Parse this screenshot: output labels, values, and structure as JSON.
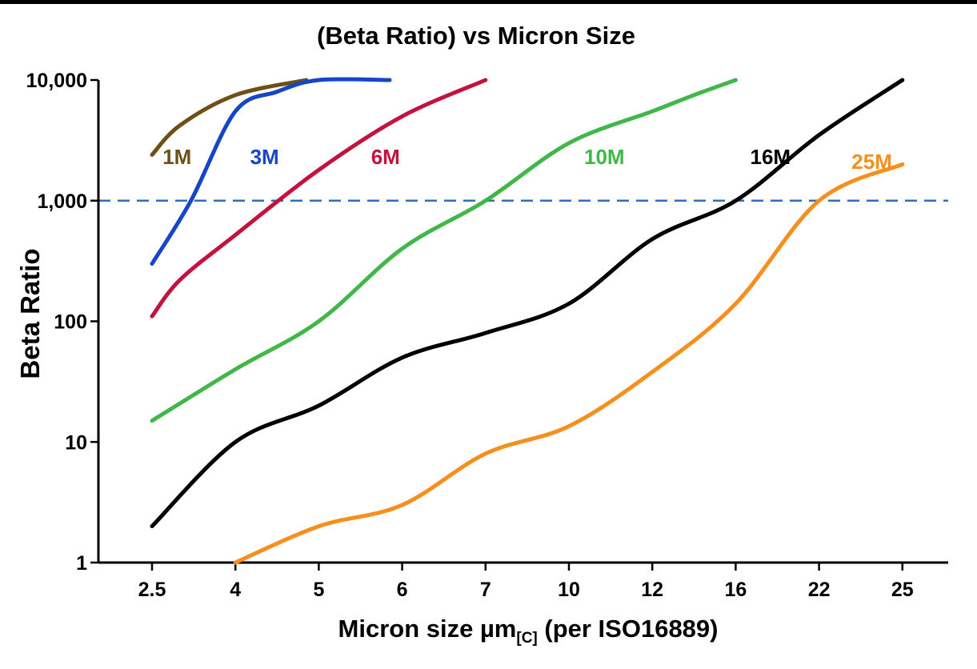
{
  "page": {
    "background": "#ffffff",
    "top_border_color": "#000000"
  },
  "chart_data": {
    "type": "line",
    "title": "(Beta Ratio) vs Micron Size",
    "ylabel": "Beta Ratio",
    "xlabel_main": "Micron size µm",
    "xlabel_sub": "[C]",
    "xlabel_suffix": " (per ISO16889)",
    "y_scale": "log",
    "ylim": [
      1,
      10000
    ],
    "y_ticks": [
      1,
      10,
      100,
      1000,
      10000
    ],
    "y_tick_labels": [
      "1",
      "10",
      "100",
      "1,000",
      "10,000"
    ],
    "x_ticks": [
      2.5,
      4,
      5,
      6,
      7,
      10,
      12,
      16,
      22,
      25
    ],
    "x_tick_labels": [
      "2.5",
      "4",
      "5",
      "6",
      "7",
      "10",
      "12",
      "16",
      "22",
      "25"
    ],
    "grid": false,
    "legend_position": "inline-labels",
    "axis_color": "#000000",
    "reference_line": {
      "y": 1000,
      "style": "dashed",
      "color": "#2e6fb7"
    },
    "series": [
      {
        "name": "1M",
        "color": "#6e4f16",
        "label_pos": [
          2.95,
          2300
        ],
        "points": [
          [
            2.5,
            2400
          ],
          [
            3,
            4200
          ],
          [
            4,
            7500
          ],
          [
            4.85,
            10000
          ]
        ]
      },
      {
        "name": "3M",
        "color": "#1646c6",
        "label_pos": [
          4.35,
          2300
        ],
        "points": [
          [
            2.5,
            300
          ],
          [
            3.2,
            1000
          ],
          [
            4,
            5500
          ],
          [
            4.5,
            8000
          ],
          [
            5,
            10000
          ],
          [
            5.85,
            10000
          ]
        ]
      },
      {
        "name": "6M",
        "color": "#c1133e",
        "label_pos": [
          5.8,
          2300
        ],
        "points": [
          [
            2.5,
            110
          ],
          [
            3,
            220
          ],
          [
            4,
            520
          ],
          [
            5,
            1800
          ],
          [
            6,
            5000
          ],
          [
            7,
            10000
          ]
        ]
      },
      {
        "name": "10M",
        "color": "#41b649",
        "label_pos": [
          10.85,
          2300
        ],
        "points": [
          [
            2.5,
            15
          ],
          [
            4,
            40
          ],
          [
            5,
            100
          ],
          [
            6,
            400
          ],
          [
            7,
            1000
          ],
          [
            10,
            3000
          ],
          [
            12,
            5500
          ],
          [
            14,
            7500
          ],
          [
            16,
            10000
          ]
        ]
      },
      {
        "name": "16M",
        "color": "#000000",
        "label_pos": [
          18.5,
          2300
        ],
        "points": [
          [
            2.5,
            2
          ],
          [
            4,
            10
          ],
          [
            5,
            20
          ],
          [
            6,
            50
          ],
          [
            7,
            80
          ],
          [
            10,
            140
          ],
          [
            12,
            480
          ],
          [
            16,
            1000
          ],
          [
            22,
            3500
          ],
          [
            25,
            10000
          ]
        ]
      },
      {
        "name": "25M",
        "color": "#f78f1e",
        "label_pos": [
          23.9,
          2100
        ],
        "points": [
          [
            4,
            1
          ],
          [
            5,
            2
          ],
          [
            6,
            3
          ],
          [
            7,
            8
          ],
          [
            10,
            13.5
          ],
          [
            12,
            38
          ],
          [
            16,
            140
          ],
          [
            22,
            1000
          ],
          [
            25,
            2000
          ]
        ]
      }
    ]
  }
}
